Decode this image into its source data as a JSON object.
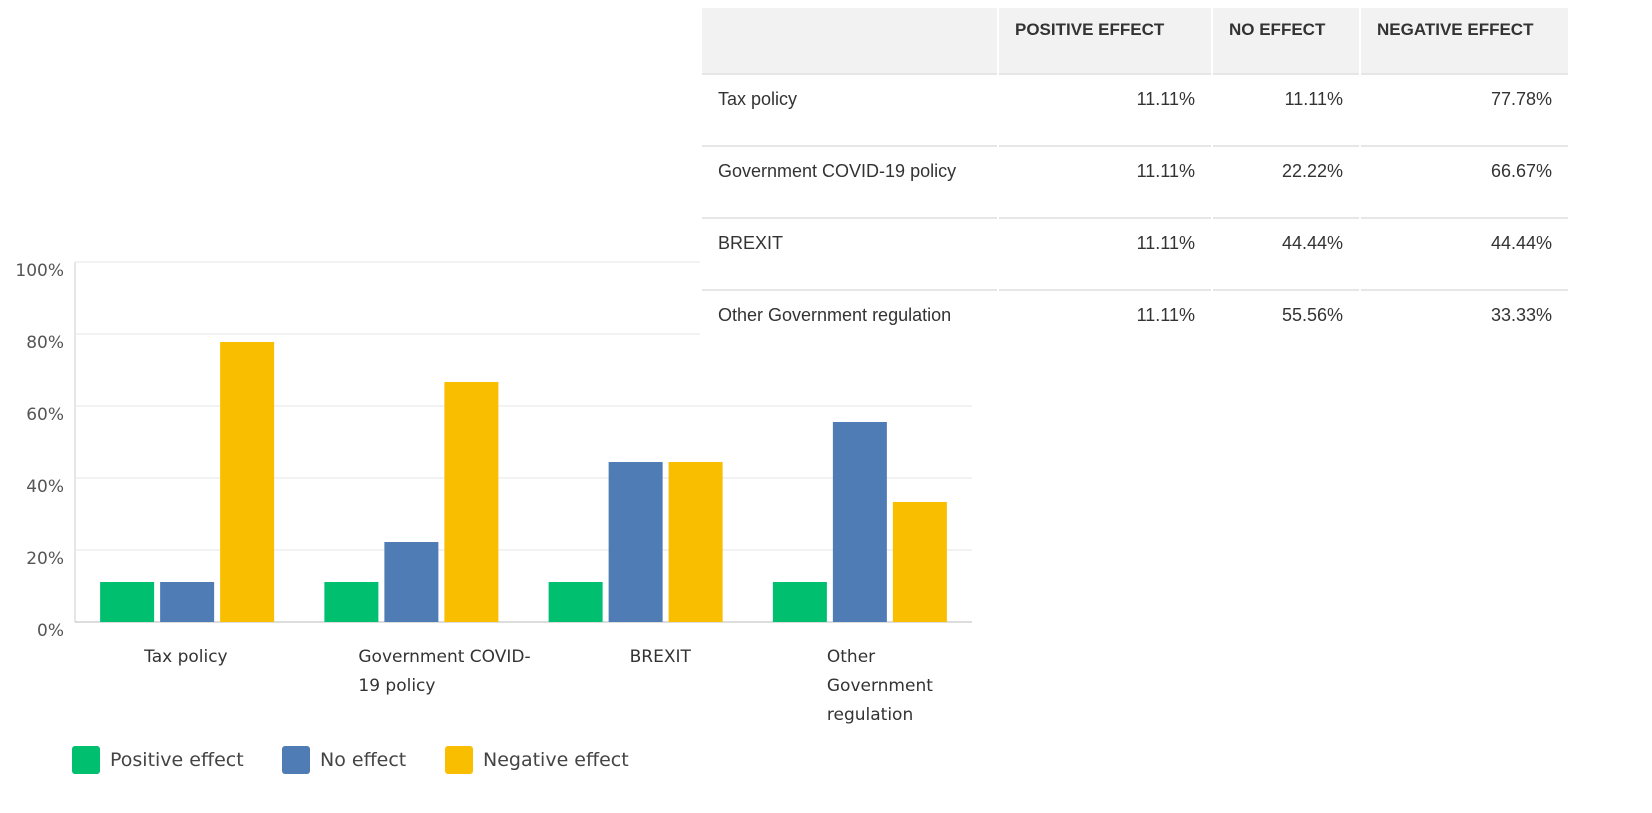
{
  "chart_data": {
    "type": "bar",
    "categories": [
      "Tax policy",
      "Government COVID-19 policy",
      "BREXIT",
      "Other Government regulation"
    ],
    "series": [
      {
        "name": "Positive effect",
        "color": "#00bf6f",
        "values": [
          11.11,
          11.11,
          11.11,
          11.11
        ]
      },
      {
        "name": "No effect",
        "color": "#507cb6",
        "values": [
          11.11,
          22.22,
          44.44,
          55.56
        ]
      },
      {
        "name": "Negative effect",
        "color": "#f9be00",
        "values": [
          77.78,
          66.67,
          44.44,
          33.33
        ]
      }
    ],
    "ylim": [
      0,
      100
    ],
    "yticks": [
      {
        "value": 0,
        "label": "0%"
      },
      {
        "value": 20,
        "label": "20%"
      },
      {
        "value": 40,
        "label": "40%"
      },
      {
        "value": 60,
        "label": "60%"
      },
      {
        "value": 80,
        "label": "80%"
      },
      {
        "value": 100,
        "label": "100%"
      }
    ],
    "grid": true,
    "legend": "bottom-left"
  },
  "table": {
    "header": [
      "POSITIVE EFFECT",
      "NO EFFECT",
      "NEGATIVE EFFECT"
    ],
    "rows": [
      [
        "Tax policy",
        "11.11%",
        "11.11%",
        "77.78%"
      ],
      [
        "Government COVID-19 policy",
        "11.11%",
        "22.22%",
        "66.67%"
      ],
      [
        "BREXIT",
        "11.11%",
        "44.44%",
        "44.44%"
      ],
      [
        "Other Government regulation",
        "11.11%",
        "55.56%",
        "33.33%"
      ]
    ]
  }
}
